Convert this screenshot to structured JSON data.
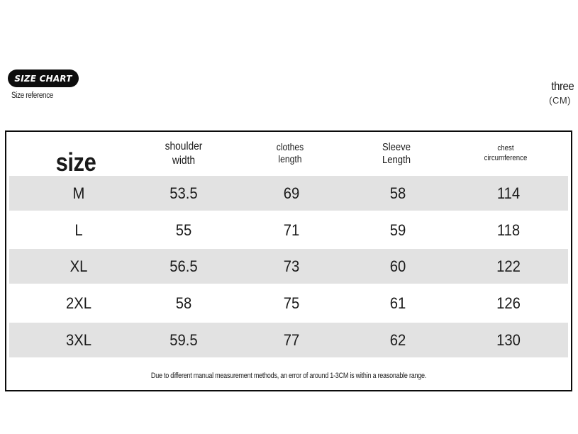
{
  "badge": "SIZE CHART",
  "subtitle": "Size reference",
  "unit_word": "three",
  "unit_code": "(CM)",
  "headers": {
    "size": "size",
    "shoulder": [
      "shoulder",
      "width"
    ],
    "clothes": [
      "clothes",
      "length"
    ],
    "sleeve": [
      "Sleeve",
      "Length"
    ],
    "chest": [
      "chest",
      "circumference"
    ]
  },
  "rows": [
    {
      "size": "M",
      "shoulder": "53.5",
      "clothes": "69",
      "sleeve": "58",
      "chest": "114"
    },
    {
      "size": "L",
      "shoulder": "55",
      "clothes": "71",
      "sleeve": "59",
      "chest": "118"
    },
    {
      "size": "XL",
      "shoulder": "56.5",
      "clothes": "73",
      "sleeve": "60",
      "chest": "122"
    },
    {
      "size": "2XL",
      "shoulder": "58",
      "clothes": "75",
      "sleeve": "61",
      "chest": "126"
    },
    {
      "size": "3XL",
      "shoulder": "59.5",
      "clothes": "77",
      "sleeve": "62",
      "chest": "130"
    }
  ],
  "note": "Due to different manual measurement methods, an error of around 1-3CM is within a reasonable range.",
  "colors": {
    "shaded_row": "#e2e2e2",
    "badge_background": "#0d0d0d",
    "border": "#0b0b0b"
  }
}
